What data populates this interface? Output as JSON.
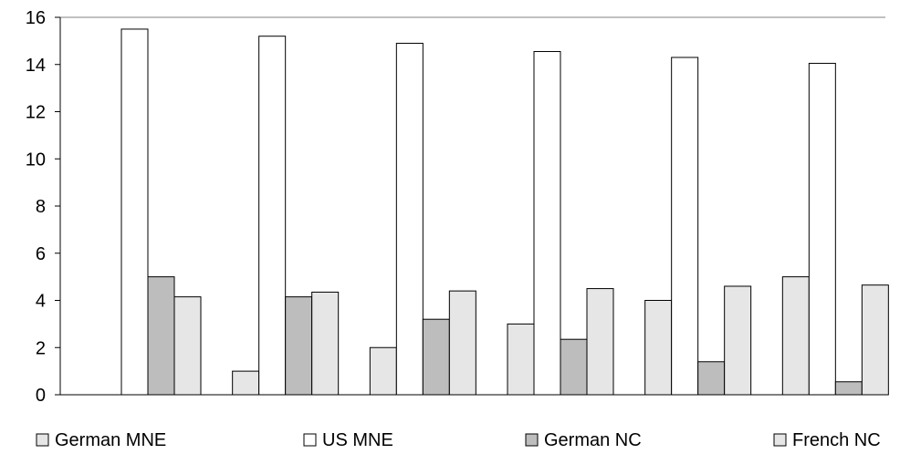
{
  "chart_data": {
    "type": "bar",
    "categories": [
      "",
      "",
      "",
      "",
      "",
      ""
    ],
    "series": [
      {
        "name": "German MNE",
        "values": [
          0,
          1,
          2,
          3,
          4,
          5
        ],
        "color": "#e6e6e6"
      },
      {
        "name": "US MNE",
        "values": [
          15.5,
          15.2,
          14.9,
          14.55,
          14.3,
          14.05
        ],
        "color": "#ffffff"
      },
      {
        "name": "German NC",
        "values": [
          5,
          4.15,
          3.2,
          2.35,
          1.4,
          0.55
        ],
        "color": "#bdbdbd"
      },
      {
        "name": "French NC",
        "values": [
          4.15,
          4.35,
          4.4,
          4.5,
          4.6,
          4.65
        ],
        "color": "#e6e6e6"
      }
    ],
    "title": "",
    "xlabel": "",
    "ylabel": "",
    "ylim": [
      0,
      16
    ],
    "yticks": [
      "0",
      "2",
      "4",
      "6",
      "8",
      "10",
      "12",
      "14",
      "16"
    ],
    "grid": false,
    "legend_position": "bottom"
  }
}
